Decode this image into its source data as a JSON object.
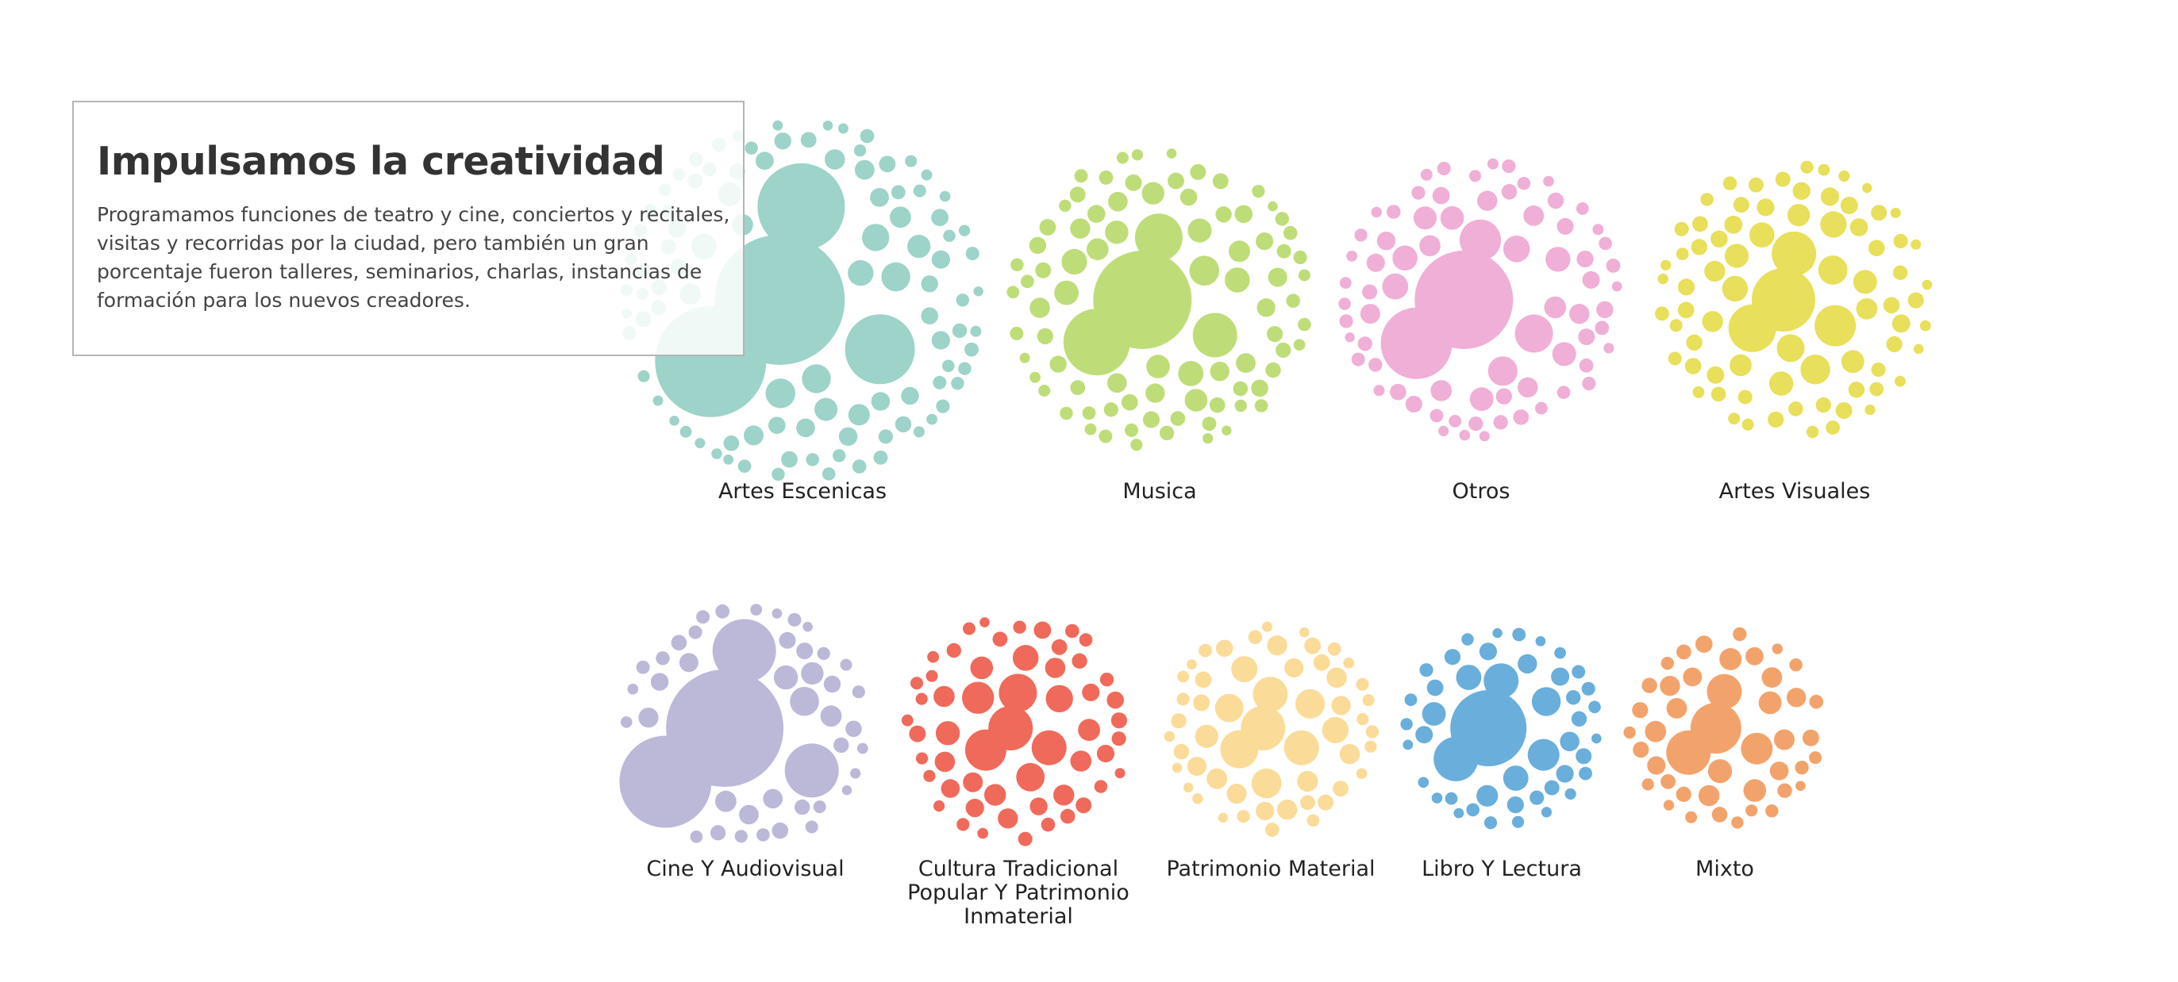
{
  "info": {
    "title": "Impulsamos la creatividad",
    "text": "Programamos funciones de teatro y cine, conciertos y recitales, visitas y recorridas por la ciudad, pero también un gran porcentaje fueron talleres, seminarios, charlas, instancias de formación para los nuevos creadores."
  },
  "chart_data": {
    "type": "bubble-cluster",
    "categories": [
      {
        "label": "Artes Escenicas",
        "color": "#9dd3c8",
        "bubbles": 90
      },
      {
        "label": "Musica",
        "color": "#bedd78",
        "bubbles": 100
      },
      {
        "label": "Otros",
        "color": "#efafd6",
        "bubbles": 95
      },
      {
        "label": "Artes Visuales",
        "color": "#e8df5a",
        "bubbles": 90
      },
      {
        "label": "Cine Y Audiovisual",
        "color": "#bcb8d8",
        "bubbles": 55
      },
      {
        "label": "Cultura Tradicional Popular Y Patrimonio Inmaterial",
        "color": "#ef6a5a",
        "bubbles": 95
      },
      {
        "label": "Patrimonio Material",
        "color": "#fbdb98",
        "bubbles": 85
      },
      {
        "label": "Libro Y Lectura",
        "color": "#6aaedb",
        "bubbles": 55
      },
      {
        "label": "Mixto",
        "color": "#f2a36c",
        "bubbles": 85
      }
    ]
  }
}
